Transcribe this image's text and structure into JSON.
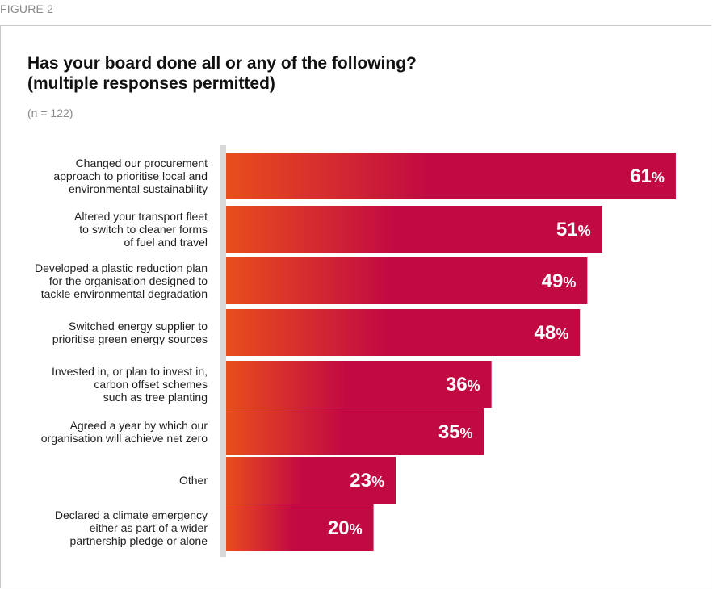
{
  "figure_label": "FIGURE 2",
  "title_lines": [
    "Has your board done all or any of the following?",
    "(multiple responses permitted)"
  ],
  "subtitle": "(n = 122)",
  "colors": {
    "bar_start": "#e84e1c",
    "bar_end": "#c20a42",
    "axis": "#d9d9d9",
    "label_text": "#1e1e1e",
    "value_text": "#ffffff"
  },
  "chart_data": {
    "type": "bar",
    "orientation": "horizontal",
    "title": "Has your board done all or any of the following? (multiple responses permitted)",
    "subtitle": "(n = 122)",
    "unit": "%",
    "grid": false,
    "xlim": [
      0,
      100
    ],
    "categories": [
      [
        "Changed our procurement",
        "approach to prioritise local and",
        "environmental sustainability"
      ],
      [
        "Altered your transport fleet",
        "to switch to cleaner forms",
        "of fuel and travel"
      ],
      [
        "Developed a plastic reduction plan",
        "for the organisation designed to",
        "tackle environmental degradation"
      ],
      [
        "Switched energy supplier to",
        "prioritise green energy sources"
      ],
      [
        "Invested in, or plan to invest in,",
        "carbon offset schemes",
        "such as tree planting"
      ],
      [
        "Agreed a year by which our",
        "organisation will achieve net zero"
      ],
      [
        "Other"
      ],
      [
        "Declared a climate emergency",
        "either as part of a wider",
        "partnership pledge or alone"
      ]
    ],
    "values": [
      61,
      51,
      49,
      48,
      36,
      35,
      23,
      20
    ]
  }
}
